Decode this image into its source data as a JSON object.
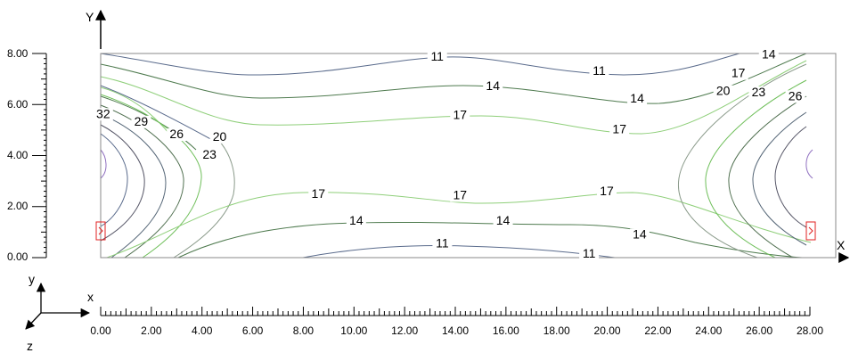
{
  "vertical_axis": {
    "label": "Y",
    "ticks": [
      "8.00",
      "6.00",
      "4.00",
      "2.00",
      "0.00"
    ]
  },
  "horizontal_axis": {
    "label": "X",
    "ticks": [
      "0.00",
      "2.00",
      "4.00",
      "6.00",
      "8.00",
      "10.00",
      "12.00",
      "14.00",
      "16.00",
      "18.00",
      "20.00",
      "22.00",
      "24.00",
      "26.00",
      "28.00"
    ]
  },
  "coordinate_triad": {
    "x": "x",
    "y": "y",
    "z": "z"
  },
  "contour_labels": [
    {
      "text": "11",
      "x": 13.3,
      "y": 7.75
    },
    {
      "text": "11",
      "x": 19.7,
      "y": 7.2
    },
    {
      "text": "14",
      "x": 15.5,
      "y": 6.6
    },
    {
      "text": "14",
      "x": 21.2,
      "y": 6.1
    },
    {
      "text": "17",
      "x": 14.2,
      "y": 5.45
    },
    {
      "text": "17",
      "x": 20.5,
      "y": 4.9
    },
    {
      "text": "17",
      "x": 25.2,
      "y": 7.1
    },
    {
      "text": "14",
      "x": 26.4,
      "y": 7.85
    },
    {
      "text": "20",
      "x": 24.6,
      "y": 6.4
    },
    {
      "text": "23",
      "x": 26.0,
      "y": 6.35
    },
    {
      "text": "26",
      "x": 27.45,
      "y": 6.2
    },
    {
      "text": "32",
      "x": 0.1,
      "y": 5.5
    },
    {
      "text": "29",
      "x": 1.6,
      "y": 5.2
    },
    {
      "text": "26",
      "x": 3.0,
      "y": 4.7
    },
    {
      "text": "20",
      "x": 4.7,
      "y": 4.6
    },
    {
      "text": "23",
      "x": 4.3,
      "y": 3.9
    },
    {
      "text": "17",
      "x": 8.6,
      "y": 2.35
    },
    {
      "text": "17",
      "x": 14.2,
      "y": 2.3
    },
    {
      "text": "17",
      "x": 20.0,
      "y": 2.45
    },
    {
      "text": "14",
      "x": 10.1,
      "y": 1.3
    },
    {
      "text": "14",
      "x": 15.9,
      "y": 1.3
    },
    {
      "text": "14",
      "x": 21.3,
      "y": 0.75
    },
    {
      "text": "11",
      "x": 13.5,
      "y": 0.4
    },
    {
      "text": "11",
      "x": 19.3,
      "y": 0.0
    }
  ],
  "colors": {
    "c11": "#5a6b8c",
    "c14": "#4e7a4e",
    "c17": "#8fcf7a",
    "c20": "#8a9a8a",
    "c23": "#6fbf5a",
    "c26": "#4f6f4f",
    "c29": "#556677",
    "c32": "#555566",
    "inner": "#9070c0",
    "marker": "#e02020",
    "frame": "#888888"
  }
}
